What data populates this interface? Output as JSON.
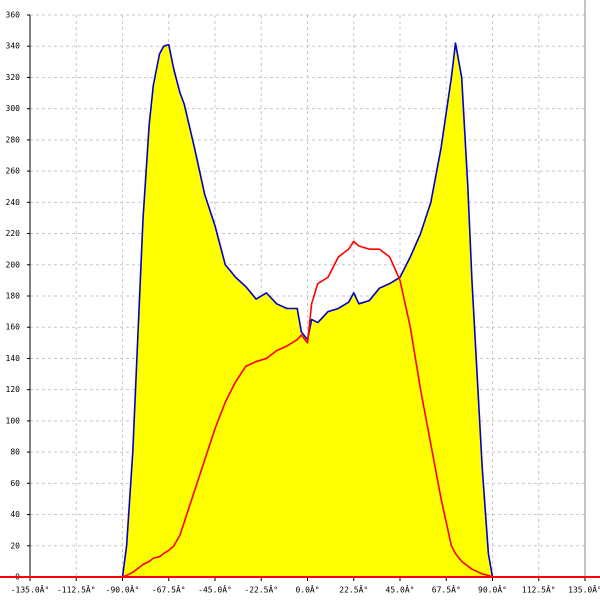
{
  "chart_data": {
    "type": "area",
    "x": [
      -90,
      -88,
      -85,
      -82,
      -80,
      -77,
      -75,
      -72,
      -70,
      -67.5,
      -65,
      -62,
      -60,
      -55,
      -50,
      -45,
      -40,
      -35,
      -30,
      -25,
      -20,
      -15,
      -10,
      -5,
      -3,
      0,
      2,
      5,
      10,
      15,
      20,
      22.5,
      25,
      30,
      35,
      40,
      45,
      50,
      55,
      60,
      65,
      70,
      72,
      75,
      78,
      80,
      85,
      88,
      90
    ],
    "series": [
      {
        "color": "#0000cc",
        "fill": "#ffff00",
        "values": [
          0,
          20,
          80,
          170,
          230,
          290,
          315,
          335,
          340,
          341,
          325,
          310,
          303,
          275,
          245,
          225,
          200,
          192,
          186,
          178,
          182,
          175,
          172,
          172,
          157,
          152,
          165,
          163,
          170,
          172,
          176,
          182,
          175,
          177,
          185,
          188,
          192,
          205,
          220,
          240,
          275,
          320,
          342,
          320,
          250,
          190,
          70,
          15,
          0
        ]
      },
      {
        "color": "#ff0000",
        "values": [
          0,
          1,
          3,
          6,
          8,
          10,
          12,
          13,
          15,
          17,
          20,
          27,
          35,
          55,
          75,
          95,
          112,
          125,
          135,
          138,
          140,
          145,
          148,
          152,
          155,
          150,
          175,
          188,
          192,
          205,
          210,
          215,
          212,
          210,
          210,
          205,
          190,
          160,
          120,
          85,
          50,
          20,
          15,
          10,
          7,
          5,
          2,
          1,
          0
        ]
      }
    ],
    "xlim": [
      -135,
      135
    ],
    "xticks": [
      {
        "value": -135,
        "label": "-135.0Â°"
      },
      {
        "value": -112.5,
        "label": "-112.5Â°"
      },
      {
        "value": -90,
        "label": "-90.0Â°"
      },
      {
        "value": -67.5,
        "label": "-67.5Â°"
      },
      {
        "value": -45,
        "label": "-45.0Â°"
      },
      {
        "value": -22.5,
        "label": "-22.5Â°"
      },
      {
        "value": 0,
        "label": "0.0Â°"
      },
      {
        "value": 22.5,
        "label": "22.5Â°"
      },
      {
        "value": 45,
        "label": "45.0Â°"
      },
      {
        "value": 67.5,
        "label": "67.5Â°"
      },
      {
        "value": 90,
        "label": "90.0Â°"
      },
      {
        "value": 112.5,
        "label": "112.5Â°"
      },
      {
        "value": 135,
        "label": "135.0Â°"
      }
    ],
    "ylim": [
      0,
      360
    ],
    "yticks": [
      0,
      20,
      40,
      60,
      80,
      100,
      120,
      140,
      160,
      180,
      200,
      220,
      240,
      260,
      280,
      300,
      320,
      340,
      360
    ],
    "grid": true
  }
}
